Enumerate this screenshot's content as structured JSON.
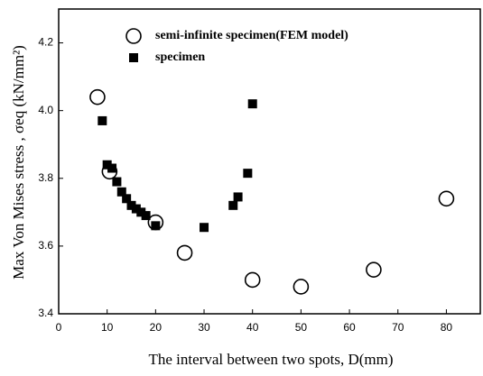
{
  "chart_data": {
    "type": "scatter",
    "xlabel": "The interval between two spots, D(mm)",
    "ylabel": "Max Von Mises stress , σeq (kN/mm²)",
    "xlim": [
      0,
      87
    ],
    "xticks": [
      0,
      10,
      20,
      30,
      40,
      50,
      60,
      70,
      80
    ],
    "ylim": [
      3.4,
      4.3
    ],
    "yticks": [
      3.4,
      3.6,
      3.8,
      4.0,
      4.2
    ],
    "series": [
      {
        "name": "semi-infinite specimen(FEM model)",
        "marker": "open-circle",
        "color": "#000000",
        "x": [
          8,
          10.5,
          20,
          26,
          40,
          50,
          65,
          80
        ],
        "values": [
          4.04,
          3.82,
          3.67,
          3.58,
          3.5,
          3.48,
          3.53,
          3.74
        ]
      },
      {
        "name": "specimen",
        "marker": "filled-square",
        "color": "#000000",
        "x": [
          9,
          10,
          11,
          12,
          13,
          14,
          15,
          16,
          17,
          18,
          20,
          30,
          36,
          37,
          39,
          40
        ],
        "values": [
          3.97,
          3.84,
          3.83,
          3.79,
          3.76,
          3.74,
          3.72,
          3.71,
          3.7,
          3.69,
          3.66,
          3.655,
          3.72,
          3.745,
          3.815,
          4.02
        ]
      }
    ]
  }
}
